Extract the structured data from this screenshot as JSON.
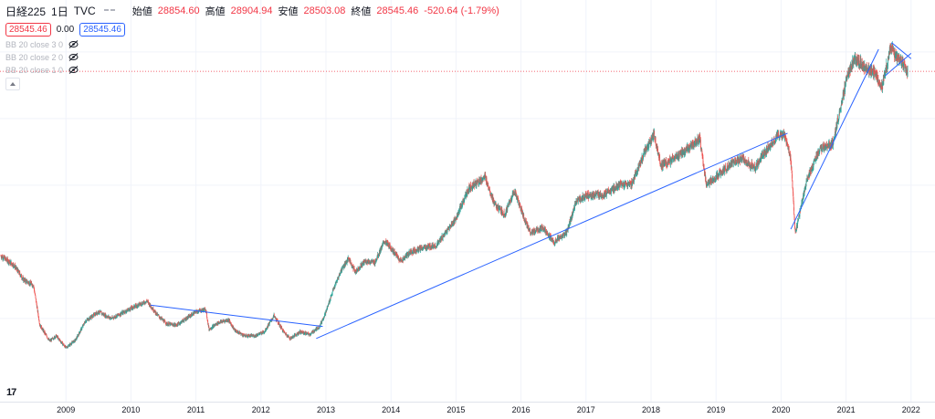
{
  "header": {
    "symbol": "日経225",
    "interval": "1日",
    "exchange": "TVC",
    "open_label": "始値",
    "open_value": "28854.60",
    "high_label": "高値",
    "high_value": "28904.94",
    "low_label": "安値",
    "low_value": "28503.08",
    "close_label": "終値",
    "close_value": "28545.46",
    "change": "-520.64 (-1.79%)",
    "bid_price": "28545.46",
    "spread": "0.00",
    "ask_price": "28545.46"
  },
  "indicators": [
    {
      "label": "BB 20 close 3 0"
    },
    {
      "label": "BB 20 close 2 0"
    },
    {
      "label": "BB 20 close 1 0"
    }
  ],
  "logo_text": "17",
  "colors": {
    "up": "#26a69a",
    "down": "#ef5350",
    "trendline": "#2962ff",
    "price_line": "#f23645"
  },
  "chart_data": {
    "type": "line",
    "x_label": "",
    "y_label": "",
    "x_ticks": [
      "2009",
      "2010",
      "2011",
      "2012",
      "2013",
      "2014",
      "2015",
      "2016",
      "2017",
      "2018",
      "2019",
      "2020",
      "2021",
      "2022"
    ],
    "current_price": 28545.46,
    "y_range": [
      6500,
      31500
    ],
    "series": [
      {
        "x": [
          2008.0,
          2008.2,
          2008.35,
          2008.5,
          2008.6,
          2008.75,
          2008.85,
          2009.0,
          2009.15,
          2009.3,
          2009.5,
          2009.7,
          2009.9,
          2010.1,
          2010.25,
          2010.4,
          2010.55,
          2010.7,
          2010.85,
          2011.0,
          2011.15,
          2011.2,
          2011.35,
          2011.5,
          2011.6,
          2011.75,
          2011.9,
          2012.05,
          2012.2,
          2012.35,
          2012.45,
          2012.6,
          2012.75,
          2012.9,
          2013.0,
          2013.1,
          2013.25,
          2013.35,
          2013.45,
          2013.6,
          2013.75,
          2013.9,
          2014.0,
          2014.15,
          2014.3,
          2014.5,
          2014.7,
          2014.85,
          2015.0,
          2015.2,
          2015.45,
          2015.6,
          2015.75,
          2015.9,
          2016.05,
          2016.15,
          2016.35,
          2016.5,
          2016.7,
          2016.85,
          2017.0,
          2017.3,
          2017.5,
          2017.7,
          2017.9,
          2018.05,
          2018.15,
          2018.3,
          2018.5,
          2018.75,
          2018.85,
          2019.0,
          2019.2,
          2019.4,
          2019.6,
          2019.75,
          2019.95,
          2020.05,
          2020.15,
          2020.22,
          2020.4,
          2020.6,
          2020.8,
          2020.95,
          2021.05,
          2021.15,
          2021.3,
          2021.45,
          2021.55,
          2021.7,
          2021.75,
          2021.85,
          2021.95
        ],
        "values": [
          14700,
          14000,
          12900,
          12500,
          9500,
          8300,
          8700,
          7800,
          8400,
          9800,
          10500,
          10000,
          10500,
          11000,
          11300,
          10300,
          9600,
          9500,
          10000,
          10500,
          10700,
          9200,
          9700,
          9900,
          9100,
          8700,
          8700,
          9000,
          10200,
          9000,
          8500,
          9000,
          8800,
          9400,
          10500,
          12000,
          13800,
          14500,
          13500,
          14300,
          14200,
          15800,
          15300,
          14300,
          15000,
          15300,
          15500,
          16500,
          17500,
          19800,
          20600,
          18500,
          17800,
          19600,
          17500,
          16400,
          16800,
          15700,
          16400,
          18800,
          19200,
          19300,
          20000,
          20100,
          22500,
          23800,
          21500,
          21800,
          22500,
          23500,
          20000,
          20600,
          21500,
          22000,
          21300,
          22500,
          23700,
          23800,
          22000,
          16400,
          20500,
          22700,
          23200,
          26700,
          28700,
          29500,
          28800,
          28400,
          27400,
          30500,
          29800,
          29200,
          28545
        ]
      }
    ],
    "trendlines": [
      {
        "x": [
          2010.3,
          2012.95
        ],
        "y": [
          11000,
          9400
        ]
      },
      {
        "x": [
          2012.85,
          2020.1
        ],
        "y": [
          8500,
          23900
        ]
      },
      {
        "x": [
          2020.15,
          2021.5
        ],
        "y": [
          16700,
          30200
        ]
      },
      {
        "x": [
          2021.6,
          2022.0
        ],
        "y": [
          28200,
          29900
        ]
      },
      {
        "x": [
          2021.7,
          2022.0
        ],
        "y": [
          30700,
          29500
        ]
      }
    ]
  }
}
